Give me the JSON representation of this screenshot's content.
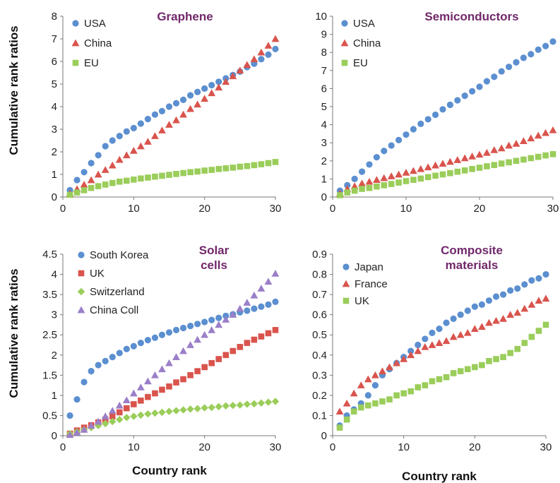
{
  "colors": {
    "blue": "#5b8fd0",
    "red": "#d9544d",
    "green": "#9acd5a",
    "purple": "#9b7fc8",
    "title": "#70286a"
  },
  "shared_labels": {
    "ylabel_top": "Cumulative rank ratios",
    "ylabel_bottom": "Cumulative rank ratios",
    "xlabel_left": "Country rank",
    "xlabel_right": "Country rank"
  },
  "chart_data": [
    {
      "type": "scatter",
      "title_lines": [
        "Graphene"
      ],
      "xlim": [
        0,
        30
      ],
      "ylim": [
        0,
        8
      ],
      "xticks": [
        0,
        10,
        20,
        30
      ],
      "yticks": [
        0,
        1,
        2,
        3,
        4,
        5,
        6,
        7,
        8
      ],
      "legend_position": "top-left",
      "x": [
        1,
        2,
        3,
        4,
        5,
        6,
        7,
        8,
        9,
        10,
        11,
        12,
        13,
        14,
        15,
        16,
        17,
        18,
        19,
        20,
        21,
        22,
        23,
        24,
        25,
        26,
        27,
        28,
        29,
        30
      ],
      "series": [
        {
          "name": "USA",
          "marker": "circle",
          "color": "#5b8fd0",
          "values": [
            0.3,
            0.75,
            1.1,
            1.5,
            1.85,
            2.25,
            2.5,
            2.7,
            2.9,
            3.05,
            3.25,
            3.45,
            3.65,
            3.8,
            4.0,
            4.15,
            4.3,
            4.5,
            4.65,
            4.8,
            4.95,
            5.1,
            5.25,
            5.4,
            5.55,
            5.75,
            5.9,
            6.1,
            6.3,
            6.55
          ]
        },
        {
          "name": "China",
          "marker": "triangle",
          "color": "#d9544d",
          "values": [
            0.15,
            0.35,
            0.55,
            0.75,
            1.0,
            1.2,
            1.4,
            1.65,
            1.85,
            2.05,
            2.25,
            2.45,
            2.7,
            2.95,
            3.2,
            3.4,
            3.65,
            3.9,
            4.1,
            4.35,
            4.6,
            4.85,
            5.1,
            5.35,
            5.6,
            5.85,
            6.1,
            6.4,
            6.7,
            7.0
          ]
        },
        {
          "name": "EU",
          "marker": "square",
          "color": "#9acd5a",
          "values": [
            0.1,
            0.2,
            0.3,
            0.4,
            0.48,
            0.55,
            0.62,
            0.68,
            0.72,
            0.77,
            0.82,
            0.86,
            0.9,
            0.94,
            0.98,
            1.02,
            1.06,
            1.1,
            1.13,
            1.17,
            1.2,
            1.24,
            1.27,
            1.3,
            1.34,
            1.37,
            1.41,
            1.45,
            1.5,
            1.55
          ]
        }
      ]
    },
    {
      "type": "scatter",
      "title_lines": [
        "Semiconductors"
      ],
      "xlim": [
        0,
        30
      ],
      "ylim": [
        0,
        10
      ],
      "xticks": [
        0,
        10,
        20,
        30
      ],
      "yticks": [
        0,
        1,
        2,
        3,
        4,
        5,
        6,
        7,
        8,
        9,
        10
      ],
      "legend_position": "top-left",
      "x": [
        1,
        2,
        3,
        4,
        5,
        6,
        7,
        8,
        9,
        10,
        11,
        12,
        13,
        14,
        15,
        16,
        17,
        18,
        19,
        20,
        21,
        22,
        23,
        24,
        25,
        26,
        27,
        28,
        29,
        30
      ],
      "series": [
        {
          "name": "USA",
          "marker": "circle",
          "color": "#5b8fd0",
          "values": [
            0.35,
            0.65,
            1.0,
            1.4,
            1.8,
            2.2,
            2.55,
            2.85,
            3.15,
            3.45,
            3.75,
            4.05,
            4.3,
            4.55,
            4.85,
            5.1,
            5.35,
            5.6,
            5.85,
            6.1,
            6.4,
            6.65,
            6.95,
            7.2,
            7.45,
            7.7,
            7.9,
            8.15,
            8.35,
            8.6
          ]
        },
        {
          "name": "China",
          "marker": "triangle",
          "color": "#d9544d",
          "values": [
            0.2,
            0.45,
            0.6,
            0.75,
            0.85,
            0.95,
            1.05,
            1.15,
            1.25,
            1.35,
            1.45,
            1.55,
            1.65,
            1.75,
            1.85,
            1.95,
            2.05,
            2.15,
            2.25,
            2.35,
            2.45,
            2.6,
            2.7,
            2.85,
            2.95,
            3.1,
            3.25,
            3.4,
            3.55,
            3.7
          ]
        },
        {
          "name": "EU",
          "marker": "square",
          "color": "#9acd5a",
          "values": [
            0.1,
            0.25,
            0.35,
            0.45,
            0.5,
            0.58,
            0.65,
            0.72,
            0.8,
            0.88,
            0.95,
            1.02,
            1.1,
            1.18,
            1.25,
            1.32,
            1.4,
            1.47,
            1.55,
            1.62,
            1.7,
            1.77,
            1.85,
            1.92,
            2.0,
            2.07,
            2.15,
            2.22,
            2.3,
            2.37
          ]
        }
      ]
    },
    {
      "type": "scatter",
      "title_lines": [
        "Solar",
        "cells"
      ],
      "xlim": [
        0,
        30
      ],
      "ylim": [
        0,
        4.5
      ],
      "xticks": [
        0,
        10,
        20,
        30
      ],
      "yticks": [
        0,
        0.5,
        1,
        1.5,
        2,
        2.5,
        3,
        3.5,
        4,
        4.5
      ],
      "legend_position": "top-left",
      "x": [
        1,
        2,
        3,
        4,
        5,
        6,
        7,
        8,
        9,
        10,
        11,
        12,
        13,
        14,
        15,
        16,
        17,
        18,
        19,
        20,
        21,
        22,
        23,
        24,
        25,
        26,
        27,
        28,
        29,
        30
      ],
      "series": [
        {
          "name": "South Korea",
          "marker": "circle",
          "color": "#5b8fd0",
          "values": [
            0.5,
            0.9,
            1.33,
            1.6,
            1.75,
            1.85,
            1.95,
            2.05,
            2.15,
            2.22,
            2.3,
            2.37,
            2.43,
            2.5,
            2.56,
            2.62,
            2.67,
            2.72,
            2.77,
            2.82,
            2.87,
            2.92,
            2.97,
            3.01,
            3.06,
            3.1,
            3.15,
            3.2,
            3.25,
            3.32
          ]
        },
        {
          "name": "UK",
          "marker": "square",
          "color": "#d9544d",
          "values": [
            0.05,
            0.13,
            0.2,
            0.26,
            0.33,
            0.4,
            0.48,
            0.58,
            0.68,
            0.78,
            0.87,
            0.96,
            1.05,
            1.14,
            1.22,
            1.32,
            1.4,
            1.5,
            1.6,
            1.7,
            1.8,
            1.9,
            2.0,
            2.1,
            2.2,
            2.3,
            2.38,
            2.46,
            2.54,
            2.62
          ]
        },
        {
          "name": "Switzerland",
          "marker": "diamond",
          "color": "#9acd5a",
          "values": [
            0.05,
            0.1,
            0.15,
            0.2,
            0.25,
            0.3,
            0.35,
            0.4,
            0.45,
            0.48,
            0.51,
            0.54,
            0.56,
            0.58,
            0.6,
            0.62,
            0.64,
            0.66,
            0.67,
            0.69,
            0.7,
            0.72,
            0.74,
            0.75,
            0.76,
            0.78,
            0.79,
            0.81,
            0.83,
            0.85
          ]
        },
        {
          "name": "China Coll",
          "marker": "triangle",
          "color": "#9b7fc8",
          "values": [
            0.02,
            0.08,
            0.15,
            0.25,
            0.35,
            0.48,
            0.62,
            0.75,
            0.88,
            1.05,
            1.2,
            1.35,
            1.5,
            1.65,
            1.8,
            1.95,
            2.1,
            2.25,
            2.38,
            2.5,
            2.62,
            2.75,
            2.88,
            3.0,
            3.15,
            3.3,
            3.48,
            3.65,
            3.82,
            4.02
          ]
        }
      ]
    },
    {
      "type": "scatter",
      "title_lines": [
        "Composite",
        "materials"
      ],
      "xlim": [
        0,
        30
      ],
      "ylim": [
        0,
        0.9
      ],
      "xticks": [
        0,
        10,
        20,
        30
      ],
      "yticks": [
        0,
        0.1,
        0.2,
        0.3,
        0.4,
        0.5,
        0.6,
        0.7,
        0.8,
        0.9
      ],
      "legend_position": "top-left",
      "x": [
        1,
        2,
        3,
        4,
        5,
        6,
        7,
        8,
        9,
        10,
        11,
        12,
        13,
        14,
        15,
        16,
        17,
        18,
        19,
        20,
        21,
        22,
        23,
        24,
        25,
        26,
        27,
        28,
        29,
        30
      ],
      "series": [
        {
          "name": "Japan",
          "marker": "circle",
          "color": "#5b8fd0",
          "values": [
            0.05,
            0.1,
            0.13,
            0.16,
            0.2,
            0.25,
            0.3,
            0.33,
            0.36,
            0.39,
            0.42,
            0.45,
            0.48,
            0.51,
            0.53,
            0.56,
            0.58,
            0.6,
            0.62,
            0.64,
            0.65,
            0.67,
            0.69,
            0.7,
            0.72,
            0.73,
            0.75,
            0.77,
            0.78,
            0.8
          ]
        },
        {
          "name": "France",
          "marker": "triangle",
          "color": "#d9544d",
          "values": [
            0.12,
            0.16,
            0.21,
            0.25,
            0.28,
            0.3,
            0.32,
            0.34,
            0.36,
            0.38,
            0.4,
            0.42,
            0.44,
            0.45,
            0.46,
            0.47,
            0.49,
            0.5,
            0.51,
            0.53,
            0.54,
            0.56,
            0.57,
            0.58,
            0.6,
            0.61,
            0.63,
            0.65,
            0.67,
            0.68
          ]
        },
        {
          "name": "UK",
          "marker": "square",
          "color": "#9acd5a",
          "values": [
            0.04,
            0.08,
            0.12,
            0.14,
            0.15,
            0.16,
            0.17,
            0.18,
            0.2,
            0.21,
            0.22,
            0.24,
            0.25,
            0.27,
            0.28,
            0.29,
            0.31,
            0.32,
            0.33,
            0.34,
            0.35,
            0.37,
            0.38,
            0.39,
            0.41,
            0.43,
            0.46,
            0.49,
            0.52,
            0.55
          ]
        }
      ]
    }
  ]
}
